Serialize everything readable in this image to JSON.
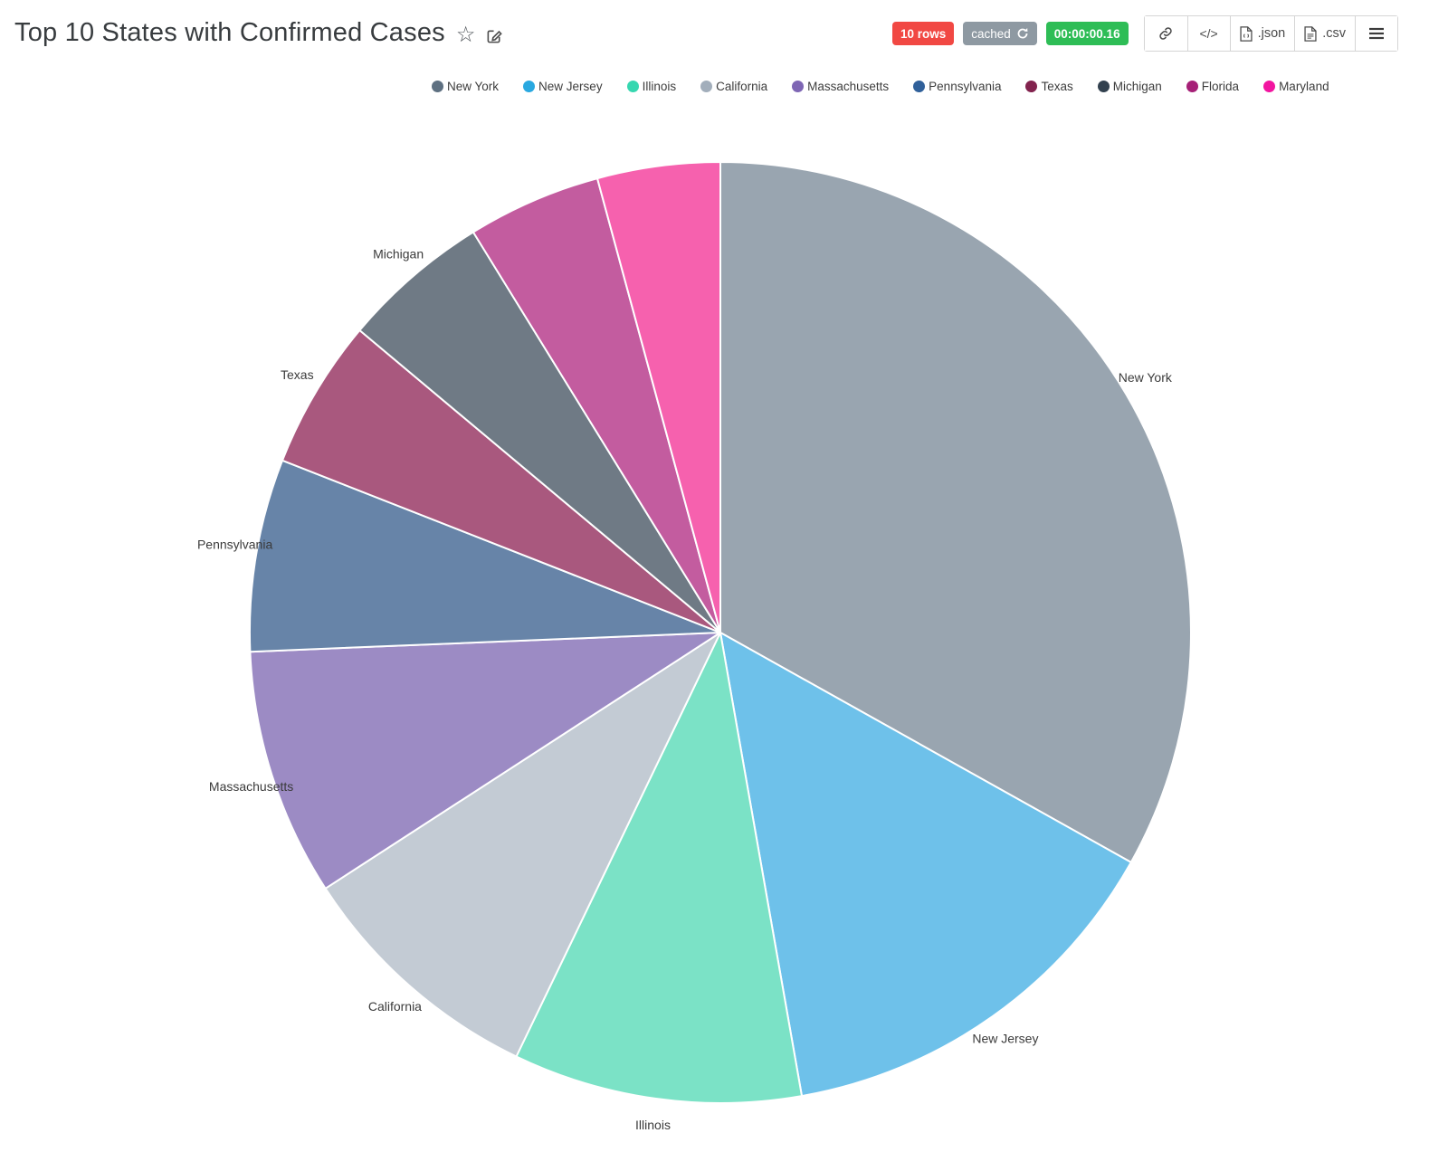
{
  "page": {
    "title": "Top 10 States with Confirmed Cases"
  },
  "header": {
    "badges": {
      "row_count": {
        "label": "10 rows",
        "color": "#F14843"
      },
      "cached": {
        "label": "cached",
        "color": "#8E99A2"
      },
      "duration": {
        "label": "00:00:00.16",
        "color": "#2EBD56"
      }
    },
    "toolbar": {
      "buttons": [
        {
          "name": "share-link-button",
          "icon": "link-icon",
          "label": ""
        },
        {
          "name": "embed-code-button",
          "icon": "code-icon",
          "label": "</>"
        },
        {
          "name": "download-json-button",
          "icon": "file-json-icon",
          "label": ".json"
        },
        {
          "name": "download-csv-button",
          "icon": "file-csv-icon",
          "label": ".csv"
        },
        {
          "name": "menu-button",
          "icon": "hamburger-icon",
          "label": ""
        }
      ]
    }
  },
  "chart_data": {
    "type": "pie",
    "title": "Top 10 States with Confirmed Cases",
    "legend_position": "top",
    "direction": "clockwise",
    "start_angle_deg": 0,
    "unit": "percent_of_total_estimated_from_slice_angles",
    "slices": [
      {
        "label": "New York",
        "value_pct": 33.12,
        "color": "#99A5B0",
        "legend_color": "#5E7081",
        "outside_label": true
      },
      {
        "label": "New Jersey",
        "value_pct": 14.11,
        "color": "#6EC1EA",
        "legend_color": "#29A8E0",
        "outside_label": true
      },
      {
        "label": "Illinois",
        "value_pct": 9.91,
        "color": "#7BE2C6",
        "legend_color": "#36D7B0",
        "outside_label": true
      },
      {
        "label": "California",
        "value_pct": 8.71,
        "color": "#C3CBD4",
        "legend_color": "#A2AEBB",
        "outside_label": true
      },
      {
        "label": "Massachusetts",
        "value_pct": 8.5,
        "color": "#9C8BC4",
        "legend_color": "#7E66B4",
        "outside_label": true
      },
      {
        "label": "Pennsylvania",
        "value_pct": 6.61,
        "color": "#6784A8",
        "legend_color": "#30609A",
        "outside_label": true
      },
      {
        "label": "Texas",
        "value_pct": 5.14,
        "color": "#A9587E",
        "legend_color": "#82234E",
        "outside_label": true
      },
      {
        "label": "Michigan",
        "value_pct": 5.1,
        "color": "#6F7A85",
        "legend_color": "#32414F",
        "outside_label": true
      },
      {
        "label": "Florida",
        "value_pct": 4.59,
        "color": "#C35C9F",
        "legend_color": "#A62077",
        "outside_label": false
      },
      {
        "label": "Maryland",
        "value_pct": 4.21,
        "color": "#F661AE",
        "legend_color": "#F215A0",
        "outside_label": false
      }
    ]
  }
}
